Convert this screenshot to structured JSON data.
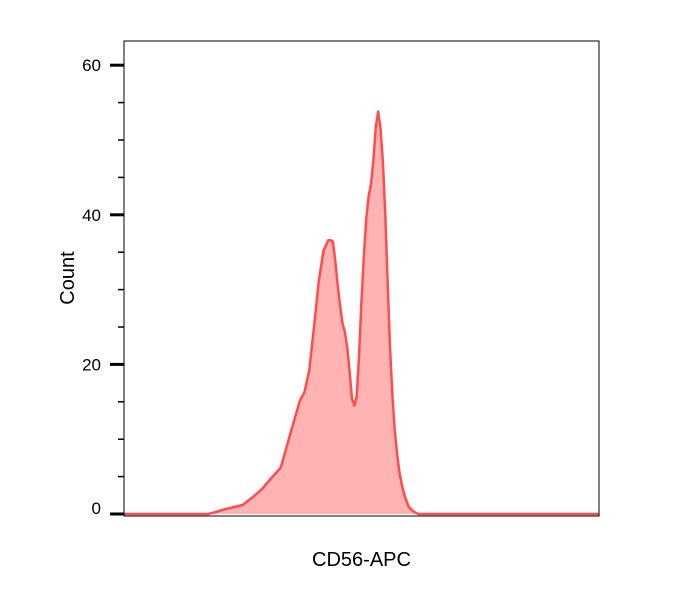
{
  "chart_data": {
    "type": "area",
    "xlabel": "CD56-APC",
    "ylabel": "Count",
    "ylim": [
      0,
      60
    ],
    "yticks": [
      0,
      20,
      40,
      60
    ],
    "ytick_labels": [
      "0",
      "20",
      "40",
      "60"
    ],
    "x_ticks_shown": false,
    "grid": false,
    "legend": "none",
    "colors": {
      "line": "#ff4d4d",
      "fill": "#ffb3b3",
      "axis": "#000000"
    },
    "x": [
      0,
      5,
      10,
      15,
      17.7,
      19,
      21,
      23,
      25,
      27,
      29,
      31,
      33,
      35,
      37,
      38,
      39,
      40,
      41,
      42,
      43,
      43.5,
      44,
      44.5,
      45,
      45.5,
      46,
      46.5,
      47,
      47.5,
      48,
      48.5,
      49,
      49.5,
      50,
      50.5,
      51,
      51.5,
      52,
      52.5,
      53,
      53.5,
      54,
      54.5,
      55,
      55.5,
      56,
      56.5,
      57,
      57.5,
      58,
      58.5,
      59,
      59.5,
      60,
      61,
      62,
      63,
      64,
      65,
      68,
      72,
      80,
      90,
      100
    ],
    "values": [
      0,
      0,
      0,
      0,
      0,
      0.2,
      0.6,
      0.9,
      1.2,
      2.2,
      3.3,
      4.8,
      6.2,
      10.7,
      15.1,
      16.3,
      19.2,
      25.0,
      31.1,
      35.2,
      36.6,
      36.6,
      36.4,
      33.7,
      30.5,
      27.8,
      25.5,
      24.3,
      22.3,
      19.0,
      15.4,
      14.5,
      15.8,
      21.4,
      28.5,
      34.5,
      39.5,
      42.5,
      44.1,
      47.3,
      51.7,
      53.8,
      51.6,
      47.1,
      40.2,
      31.1,
      22.3,
      15.9,
      11.2,
      8.0,
      5.5,
      3.9,
      2.6,
      1.7,
      0.9,
      0.3,
      0,
      0,
      0,
      0,
      0,
      0,
      0,
      0,
      0
    ]
  }
}
